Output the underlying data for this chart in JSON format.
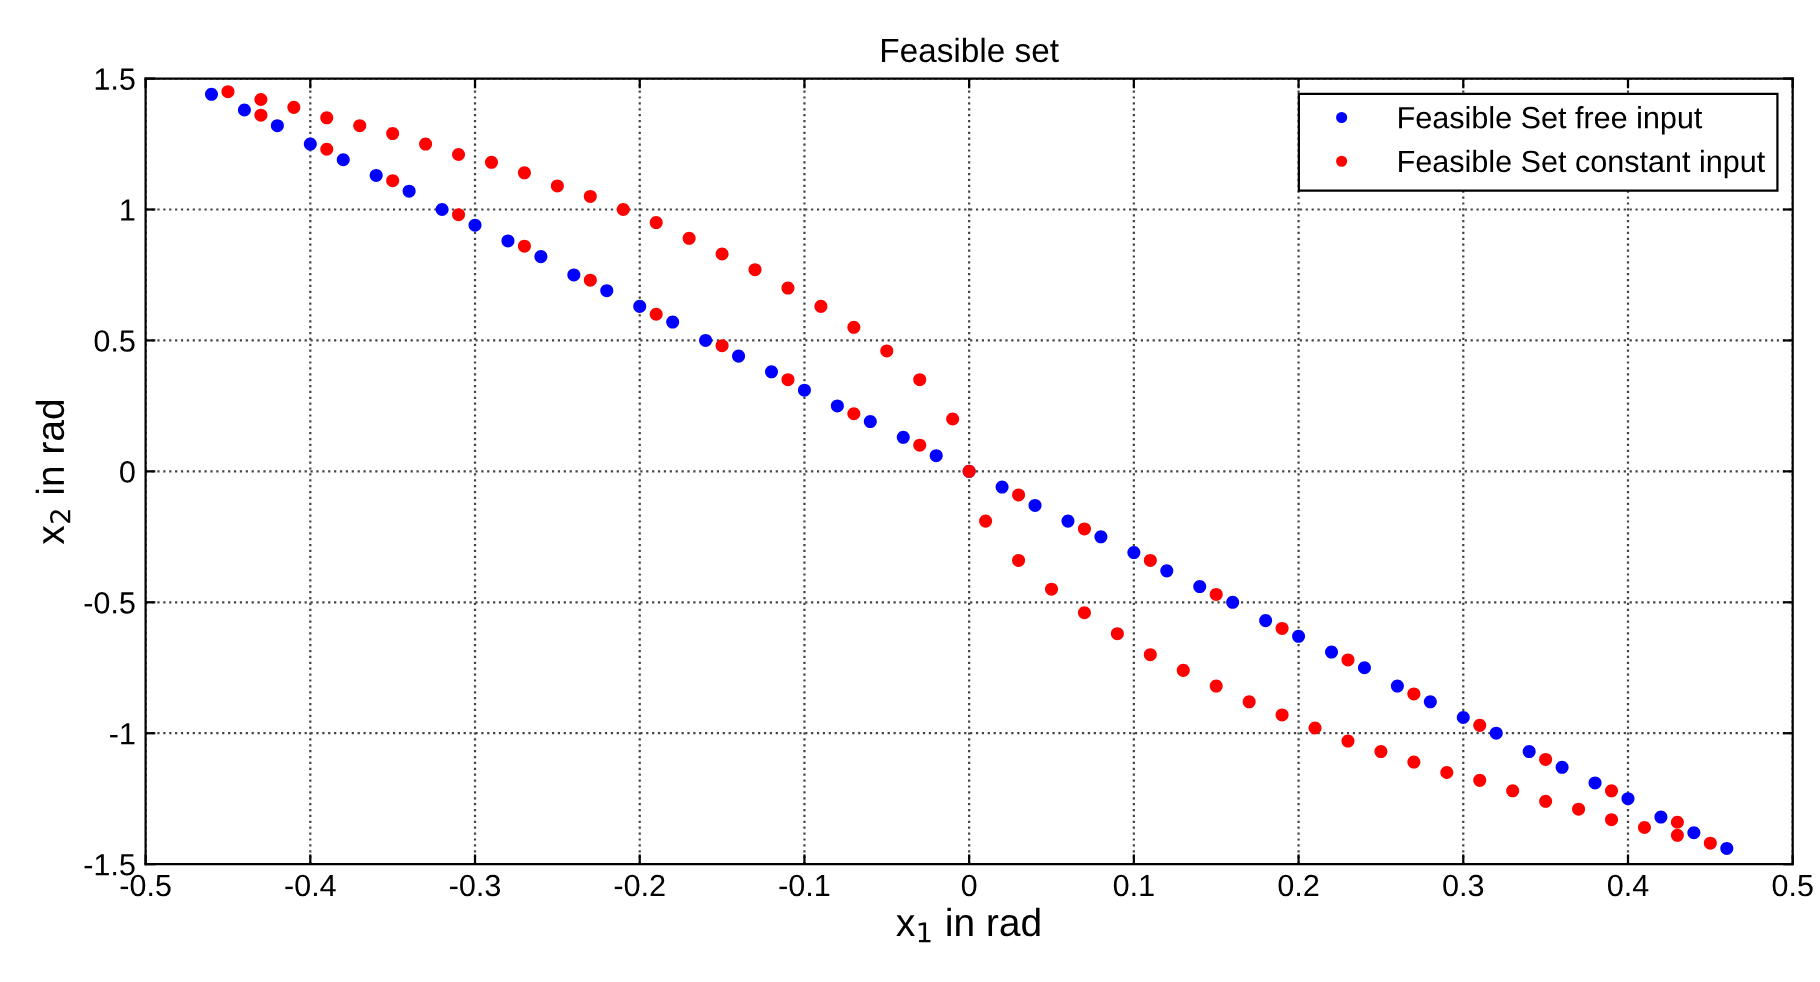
{
  "chart_data": {
    "type": "scatter",
    "title": "Feasible set",
    "xlabel": "x$_{1}$ in rad",
    "ylabel": "x$_{2}$ in rad",
    "xlim": [
      -0.5,
      0.5
    ],
    "ylim": [
      -1.5,
      1.5
    ],
    "xticks": [
      -0.5,
      -0.4,
      -0.3,
      -0.2,
      -0.1,
      0,
      0.1,
      0.2,
      0.3,
      0.4,
      0.5
    ],
    "yticks": [
      -1.5,
      -1,
      -0.5,
      0,
      0.5,
      1,
      1.5
    ],
    "grid": true,
    "legend": "top right",
    "marker": "circle",
    "series": [
      {
        "name": "Feasible Set free input",
        "color": "#0000ff",
        "x": [
          -0.46,
          -0.44,
          -0.42,
          -0.4,
          -0.38,
          -0.36,
          -0.34,
          -0.32,
          -0.3,
          -0.28,
          -0.26,
          -0.24,
          -0.22,
          -0.2,
          -0.18,
          -0.16,
          -0.14,
          -0.12,
          -0.1,
          -0.08,
          -0.06,
          -0.04,
          -0.02,
          0,
          0.02,
          0.04,
          0.06,
          0.08,
          0.1,
          0.12,
          0.14,
          0.16,
          0.18,
          0.2,
          0.22,
          0.24,
          0.26,
          0.28,
          0.3,
          0.32,
          0.34,
          0.36,
          0.38,
          0.4,
          0.42,
          0.44,
          0.46
        ],
        "values": [
          1.44,
          1.38,
          1.32,
          1.25,
          1.19,
          1.13,
          1.07,
          1.0,
          0.94,
          0.88,
          0.82,
          0.75,
          0.69,
          0.63,
          0.57,
          0.5,
          0.44,
          0.38,
          0.31,
          0.25,
          0.19,
          0.13,
          0.06,
          0,
          -0.06,
          -0.13,
          -0.19,
          -0.25,
          -0.31,
          -0.38,
          -0.44,
          -0.5,
          -0.57,
          -0.63,
          -0.69,
          -0.75,
          -0.82,
          -0.88,
          -0.94,
          -1.0,
          -1.07,
          -1.13,
          -1.19,
          -1.25,
          -1.32,
          -1.38,
          -1.44
        ]
      },
      {
        "name": "Feasible Set constant input",
        "color": "#ff0000",
        "x": [
          -0.45,
          -0.43,
          -0.41,
          -0.39,
          -0.37,
          -0.35,
          -0.33,
          -0.31,
          -0.29,
          -0.27,
          -0.25,
          -0.23,
          -0.21,
          -0.19,
          -0.17,
          -0.15,
          -0.13,
          -0.11,
          -0.09,
          -0.07,
          -0.05,
          -0.03,
          -0.01,
          0,
          -0.43,
          -0.39,
          -0.35,
          -0.31,
          -0.27,
          -0.23,
          -0.19,
          -0.15,
          -0.11,
          -0.07,
          -0.03,
          0.45,
          0.43,
          0.41,
          0.39,
          0.37,
          0.35,
          0.33,
          0.31,
          0.29,
          0.27,
          0.25,
          0.23,
          0.21,
          0.19,
          0.17,
          0.15,
          0.13,
          0.11,
          0.09,
          0.07,
          0.05,
          0.03,
          0.01,
          0.43,
          0.39,
          0.35,
          0.31,
          0.27,
          0.23,
          0.19,
          0.15,
          0.11,
          0.07,
          0.03
        ],
        "values": [
          1.45,
          1.42,
          1.39,
          1.35,
          1.32,
          1.29,
          1.25,
          1.21,
          1.18,
          1.14,
          1.09,
          1.05,
          1.0,
          0.95,
          0.89,
          0.83,
          0.77,
          0.7,
          0.63,
          0.55,
          0.46,
          0.35,
          0.2,
          0,
          1.36,
          1.23,
          1.11,
          0.98,
          0.86,
          0.73,
          0.6,
          0.48,
          0.35,
          0.22,
          0.1,
          -1.42,
          -1.39,
          -1.36,
          -1.33,
          -1.29,
          -1.26,
          -1.22,
          -1.18,
          -1.15,
          -1.11,
          -1.07,
          -1.03,
          -0.98,
          -0.93,
          -0.88,
          -0.82,
          -0.76,
          -0.7,
          -0.62,
          -0.54,
          -0.45,
          -0.34,
          -0.19,
          -1.34,
          -1.22,
          -1.1,
          -0.97,
          -0.85,
          -0.72,
          -0.6,
          -0.47,
          -0.34,
          -0.22,
          -0.09
        ]
      }
    ]
  }
}
